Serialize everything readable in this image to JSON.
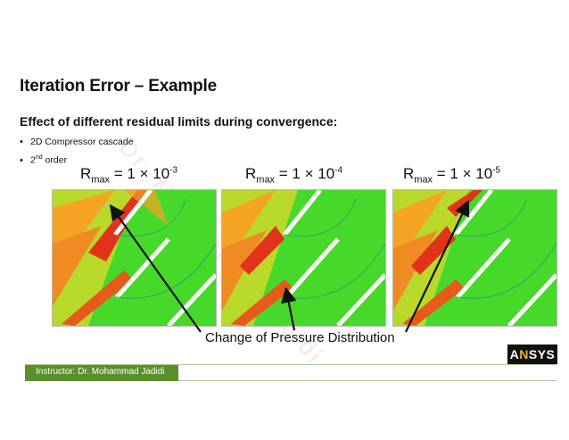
{
  "slide": {
    "title": "Iteration Error – Example",
    "subtitle": "Effect of different residual limits during convergence:",
    "bullets": [
      {
        "text": "2D Compressor cascade",
        "sup": ""
      },
      {
        "text_prefix": "2",
        "sup": "nd",
        "text_suffix": " order"
      }
    ]
  },
  "panels": [
    {
      "r_label": "R",
      "sub": "max",
      "eq": " = 1 × 10",
      "exp": "-3"
    },
    {
      "r_label": "R",
      "sub": "max",
      "eq": " = 1 × 10",
      "exp": "-4"
    },
    {
      "r_label": "R",
      "sub": "max",
      "eq": " = 1 × 10",
      "exp": "-5"
    }
  ],
  "caption": "Change of Pressure Distribution",
  "footer": {
    "instructor": "Instructor: Dr. Mohammad Jadidi"
  },
  "logo": {
    "text_a": "A",
    "slash": "N",
    "text_b": "SYS"
  },
  "watermark": "Dr. Mohammad Jadidi",
  "colors": {
    "footer_green": "#5a8f2a",
    "field_green": "#46d92a",
    "field_orange": "#f5a323",
    "field_red": "#e2331a",
    "arrow": "#111111"
  }
}
